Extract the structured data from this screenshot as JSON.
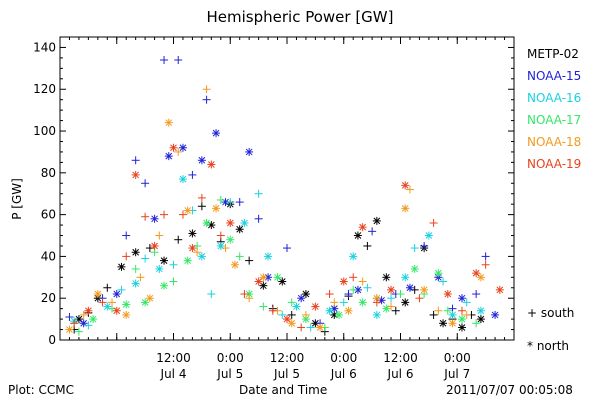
{
  "chart_data": {
    "type": "scatter",
    "title": "Hemispheric Power [GW]",
    "xlabel": "Date and Time",
    "ylabel": "P [GW]",
    "ylim": [
      0,
      145
    ],
    "yticks": [
      0,
      20,
      40,
      60,
      80,
      100,
      120,
      140
    ],
    "xlim_hours": [
      -12,
      84
    ],
    "x_ticks": [
      {
        "hour": 0,
        "label": ""
      },
      {
        "hour": 12,
        "label": "12:00\nJul 4"
      },
      {
        "hour": 24,
        "label": "0:00\nJul 5"
      },
      {
        "hour": 36,
        "label": "12:00\nJul 5"
      },
      {
        "hour": 48,
        "label": "0:00\nJul 6"
      },
      {
        "hour": 60,
        "label": "12:00\nJul 6"
      },
      {
        "hour": 72,
        "label": "0:00\nJul 7"
      }
    ],
    "legend_position": "right",
    "markers": {
      "south": "+",
      "north": "*"
    },
    "series": [
      {
        "name": "METP-02",
        "color": "#000000",
        "points": [
          [
            -9,
            5,
            "+"
          ],
          [
            -8,
            10,
            "*"
          ],
          [
            -6,
            13,
            "+"
          ],
          [
            -4,
            20,
            "*"
          ],
          [
            -2,
            25,
            "+"
          ],
          [
            1,
            35,
            "*"
          ],
          [
            4,
            42,
            "*"
          ],
          [
            7,
            44,
            "+"
          ],
          [
            10,
            38,
            "*"
          ],
          [
            13,
            48,
            "+"
          ],
          [
            16,
            51,
            "*"
          ],
          [
            18,
            64,
            "+"
          ],
          [
            20,
            55,
            "*"
          ],
          [
            22,
            47,
            "+"
          ],
          [
            24,
            65,
            "*"
          ],
          [
            26,
            53,
            "*"
          ],
          [
            28,
            38,
            "+"
          ],
          [
            31,
            26,
            "*"
          ],
          [
            33,
            15,
            "+"
          ],
          [
            35,
            28,
            "*"
          ],
          [
            37,
            12,
            "+"
          ],
          [
            40,
            22,
            "*"
          ],
          [
            42,
            8,
            "*"
          ],
          [
            44,
            4,
            "+"
          ],
          [
            46,
            12,
            "*"
          ],
          [
            49,
            21,
            "+"
          ],
          [
            51,
            50,
            "*"
          ],
          [
            53,
            45,
            "+"
          ],
          [
            55,
            57,
            "*"
          ],
          [
            57,
            30,
            "*"
          ],
          [
            59,
            14,
            "+"
          ],
          [
            61,
            18,
            "*"
          ],
          [
            63,
            24,
            "+"
          ],
          [
            65,
            44,
            "*"
          ],
          [
            67,
            12,
            "+"
          ],
          [
            69,
            8,
            "*"
          ],
          [
            71,
            10,
            "+"
          ],
          [
            73,
            6,
            "*"
          ],
          [
            75,
            12,
            "+"
          ],
          [
            77,
            10,
            "*"
          ]
        ]
      },
      {
        "name": "NOAA-15",
        "color": "#1f22d6",
        "points": [
          [
            -10,
            11,
            "+"
          ],
          [
            -7,
            8,
            "*"
          ],
          [
            -3,
            20,
            "+"
          ],
          [
            0,
            22,
            "*"
          ],
          [
            2,
            50,
            "+"
          ],
          [
            4,
            86,
            "+"
          ],
          [
            6,
            75,
            "+"
          ],
          [
            8,
            58,
            "*"
          ],
          [
            10,
            134,
            "+"
          ],
          [
            11,
            88,
            "*"
          ],
          [
            13,
            134,
            "+"
          ],
          [
            14,
            92,
            "*"
          ],
          [
            16,
            79,
            "+"
          ],
          [
            18,
            86,
            "*"
          ],
          [
            19,
            115,
            "+"
          ],
          [
            21,
            99,
            "*"
          ],
          [
            23,
            66,
            "*"
          ],
          [
            26,
            66,
            "+"
          ],
          [
            28,
            90,
            "*"
          ],
          [
            30,
            58,
            "+"
          ],
          [
            32,
            30,
            "*"
          ],
          [
            36,
            44,
            "+"
          ],
          [
            39,
            20,
            "*"
          ],
          [
            43,
            8,
            "+"
          ],
          [
            46,
            15,
            "*"
          ],
          [
            49,
            22,
            "+"
          ],
          [
            51,
            24,
            "*"
          ],
          [
            54,
            52,
            "+"
          ],
          [
            56,
            19,
            "*"
          ],
          [
            59,
            22,
            "+"
          ],
          [
            62,
            25,
            "*"
          ],
          [
            65,
            45,
            "+"
          ],
          [
            68,
            30,
            "*"
          ],
          [
            71,
            15,
            "+"
          ],
          [
            73,
            20,
            "*"
          ],
          [
            76,
            22,
            "+"
          ],
          [
            78,
            40,
            "+"
          ],
          [
            80,
            12,
            "*"
          ]
        ]
      },
      {
        "name": "NOAA-16",
        "color": "#1ad1e0",
        "points": [
          [
            -9,
            9,
            "*"
          ],
          [
            -6,
            7,
            "+"
          ],
          [
            -2,
            16,
            "*"
          ],
          [
            1,
            24,
            "+"
          ],
          [
            4,
            27,
            "*"
          ],
          [
            6,
            39,
            "+"
          ],
          [
            9,
            34,
            "*"
          ],
          [
            12,
            36,
            "+"
          ],
          [
            14,
            77,
            "*"
          ],
          [
            16,
            62,
            "+"
          ],
          [
            18,
            40,
            "*"
          ],
          [
            20,
            22,
            "+"
          ],
          [
            22,
            45,
            "*"
          ],
          [
            24,
            66,
            "+"
          ],
          [
            27,
            56,
            "*"
          ],
          [
            30,
            70,
            "+"
          ],
          [
            32,
            40,
            "*"
          ],
          [
            35,
            12,
            "+"
          ],
          [
            38,
            16,
            "*"
          ],
          [
            41,
            6,
            "+"
          ],
          [
            45,
            14,
            "*"
          ],
          [
            48,
            18,
            "+"
          ],
          [
            50,
            40,
            "*"
          ],
          [
            53,
            25,
            "+"
          ],
          [
            55,
            12,
            "*"
          ],
          [
            58,
            20,
            "+"
          ],
          [
            61,
            30,
            "*"
          ],
          [
            63,
            44,
            "+"
          ],
          [
            66,
            50,
            "*"
          ],
          [
            69,
            28,
            "+"
          ],
          [
            71,
            12,
            "*"
          ],
          [
            74,
            18,
            "+"
          ],
          [
            77,
            14,
            "*"
          ]
        ]
      },
      {
        "name": "NOAA-17",
        "color": "#33e868",
        "points": [
          [
            -8,
            4,
            "+"
          ],
          [
            -5,
            10,
            "*"
          ],
          [
            -1,
            15,
            "+"
          ],
          [
            2,
            17,
            "*"
          ],
          [
            4,
            34,
            "+"
          ],
          [
            6,
            18,
            "*"
          ],
          [
            8,
            42,
            "+"
          ],
          [
            10,
            26,
            "*"
          ],
          [
            12,
            28,
            "+"
          ],
          [
            15,
            38,
            "*"
          ],
          [
            17,
            45,
            "+"
          ],
          [
            19,
            56,
            "*"
          ],
          [
            22,
            67,
            "+"
          ],
          [
            24,
            48,
            "*"
          ],
          [
            26,
            40,
            "+"
          ],
          [
            28,
            22,
            "*"
          ],
          [
            31,
            16,
            "+"
          ],
          [
            34,
            30,
            "*"
          ],
          [
            37,
            18,
            "+"
          ],
          [
            40,
            10,
            "*"
          ],
          [
            44,
            6,
            "+"
          ],
          [
            47,
            12,
            "*"
          ],
          [
            50,
            24,
            "+"
          ],
          [
            52,
            18,
            "*"
          ],
          [
            55,
            20,
            "+"
          ],
          [
            57,
            15,
            "*"
          ],
          [
            60,
            22,
            "+"
          ],
          [
            63,
            34,
            "*"
          ],
          [
            65,
            22,
            "+"
          ],
          [
            68,
            32,
            "*"
          ],
          [
            70,
            14,
            "+"
          ],
          [
            73,
            10,
            "*"
          ],
          [
            76,
            8,
            "+"
          ]
        ]
      },
      {
        "name": "NOAA-18",
        "color": "#f39a1e",
        "points": [
          [
            -10,
            5,
            "*"
          ],
          [
            -7,
            12,
            "+"
          ],
          [
            -4,
            22,
            "*"
          ],
          [
            -1,
            18,
            "+"
          ],
          [
            2,
            12,
            "*"
          ],
          [
            5,
            30,
            "+"
          ],
          [
            7,
            20,
            "*"
          ],
          [
            9,
            50,
            "+"
          ],
          [
            11,
            104,
            "*"
          ],
          [
            13,
            90,
            "+"
          ],
          [
            15,
            62,
            "*"
          ],
          [
            17,
            42,
            "+"
          ],
          [
            19,
            120,
            "+"
          ],
          [
            21,
            63,
            "*"
          ],
          [
            23,
            44,
            "+"
          ],
          [
            25,
            36,
            "*"
          ],
          [
            28,
            20,
            "+"
          ],
          [
            31,
            30,
            "*"
          ],
          [
            34,
            14,
            "+"
          ],
          [
            37,
            8,
            "*"
          ],
          [
            40,
            12,
            "+"
          ],
          [
            43,
            6,
            "*"
          ],
          [
            46,
            18,
            "+"
          ],
          [
            49,
            14,
            "*"
          ],
          [
            52,
            28,
            "+"
          ],
          [
            55,
            20,
            "*"
          ],
          [
            58,
            16,
            "+"
          ],
          [
            61,
            63,
            "*"
          ],
          [
            62,
            72,
            "+"
          ],
          [
            65,
            24,
            "*"
          ],
          [
            68,
            14,
            "+"
          ],
          [
            71,
            8,
            "*"
          ],
          [
            74,
            12,
            "+"
          ],
          [
            77,
            30,
            "*"
          ]
        ]
      },
      {
        "name": "NOAA-19",
        "color": "#e8421e",
        "points": [
          [
            -9,
            8,
            "+"
          ],
          [
            -6,
            14,
            "*"
          ],
          [
            -3,
            18,
            "+"
          ],
          [
            0,
            14,
            "*"
          ],
          [
            2,
            40,
            "+"
          ],
          [
            4,
            79,
            "*"
          ],
          [
            6,
            59,
            "+"
          ],
          [
            8,
            45,
            "*"
          ],
          [
            10,
            60,
            "+"
          ],
          [
            12,
            92,
            "*"
          ],
          [
            14,
            60,
            "+"
          ],
          [
            16,
            44,
            "*"
          ],
          [
            18,
            68,
            "+"
          ],
          [
            20,
            84,
            "*"
          ],
          [
            22,
            50,
            "+"
          ],
          [
            24,
            56,
            "*"
          ],
          [
            27,
            22,
            "+"
          ],
          [
            30,
            28,
            "*"
          ],
          [
            33,
            14,
            "+"
          ],
          [
            36,
            10,
            "*"
          ],
          [
            39,
            6,
            "+"
          ],
          [
            42,
            16,
            "*"
          ],
          [
            45,
            22,
            "+"
          ],
          [
            48,
            28,
            "*"
          ],
          [
            50,
            30,
            "+"
          ],
          [
            52,
            54,
            "*"
          ],
          [
            55,
            18,
            "+"
          ],
          [
            58,
            24,
            "*"
          ],
          [
            61,
            74,
            "*"
          ],
          [
            64,
            20,
            "+"
          ],
          [
            67,
            56,
            "+"
          ],
          [
            70,
            22,
            "*"
          ],
          [
            73,
            14,
            "+"
          ],
          [
            76,
            32,
            "*"
          ],
          [
            78,
            36,
            "+"
          ],
          [
            81,
            24,
            "*"
          ]
        ]
      }
    ]
  },
  "symbol_legend": [
    {
      "symbol": "+",
      "label": "south"
    },
    {
      "symbol": "*",
      "label": "north"
    }
  ],
  "footer": {
    "left": "Plot: CCMC",
    "right": "2011/07/07 00:05:08"
  }
}
